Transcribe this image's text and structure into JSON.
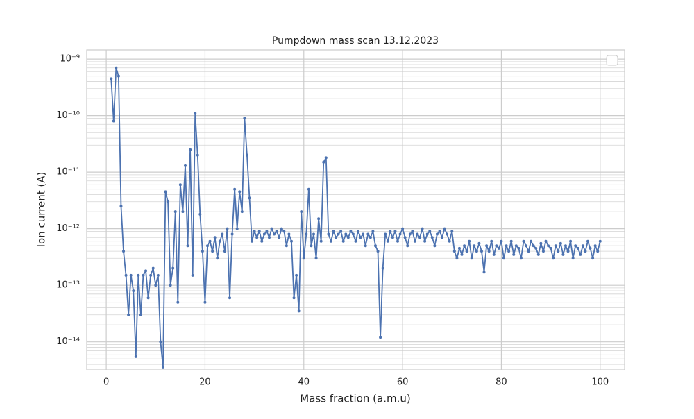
{
  "chart_data": {
    "type": "line",
    "title": "Pumpdown mass scan 13.12.2023",
    "xlabel": "Mass fraction (a.m.u)",
    "ylabel": "Ion current (A)",
    "yscale": "log",
    "grid": true,
    "minor_grid": true,
    "legend": "upper right",
    "markers": true,
    "xlim": [
      -3.95,
      104.95
    ],
    "xticks": [
      0,
      20,
      40,
      60,
      80,
      100
    ],
    "ylim": [
      3.2e-15,
      1.45e-09
    ],
    "yticks": [
      {
        "value": 1e-14,
        "label": "10⁻¹⁴"
      },
      {
        "value": 1e-13,
        "label": "10⁻¹³"
      },
      {
        "value": 1e-12,
        "label": "10⁻¹²"
      },
      {
        "value": 1e-11,
        "label": "10⁻¹¹"
      },
      {
        "value": 1e-10,
        "label": "10⁻¹⁰"
      },
      {
        "value": 1e-09,
        "label": "10⁻⁹"
      }
    ],
    "x": [
      1,
      1.5,
      2,
      2.5,
      3,
      3.5,
      4,
      4.5,
      5,
      5.5,
      6,
      6.5,
      7,
      7.5,
      8,
      8.5,
      9,
      9.5,
      10,
      10.5,
      11,
      11.5,
      12,
      12.5,
      13,
      13.5,
      14,
      14.5,
      15,
      15.5,
      16,
      16.5,
      17,
      17.5,
      18,
      18.5,
      19,
      19.5,
      20,
      20.5,
      21,
      21.5,
      22,
      22.5,
      23,
      23.5,
      24,
      24.5,
      25,
      25.5,
      26,
      26.5,
      27,
      27.5,
      28,
      28.5,
      29,
      29.5,
      30,
      30.5,
      31,
      31.5,
      32,
      32.5,
      33,
      33.5,
      34,
      34.5,
      35,
      35.5,
      36,
      36.5,
      37,
      37.5,
      38,
      38.5,
      39,
      39.5,
      40,
      40.5,
      41,
      41.5,
      42,
      42.5,
      43,
      43.5,
      44,
      44.5,
      45,
      45.5,
      46,
      46.5,
      47,
      47.5,
      48,
      48.5,
      49,
      49.5,
      50,
      50.5,
      51,
      51.5,
      52,
      52.5,
      53,
      53.5,
      54,
      54.5,
      55,
      55.5,
      56,
      56.5,
      57,
      57.5,
      58,
      58.5,
      59,
      59.5,
      60,
      60.5,
      61,
      61.5,
      62,
      62.5,
      63,
      63.5,
      64,
      64.5,
      65,
      65.5,
      66,
      66.5,
      67,
      67.5,
      68,
      68.5,
      69,
      69.5,
      70,
      70.5,
      71,
      71.5,
      72,
      72.5,
      73,
      73.5,
      74,
      74.5,
      75,
      75.5,
      76,
      76.5,
      77,
      77.5,
      78,
      78.5,
      79,
      79.5,
      80,
      80.5,
      81,
      81.5,
      82,
      82.5,
      83,
      83.5,
      84,
      84.5,
      85,
      85.5,
      86,
      86.5,
      87,
      87.5,
      88,
      88.5,
      89,
      89.5,
      90,
      90.5,
      91,
      91.5,
      92,
      92.5,
      93,
      93.5,
      94,
      94.5,
      95,
      95.5,
      96,
      96.5,
      97,
      97.5,
      98,
      98.5,
      99,
      99.5,
      100
    ],
    "series": [
      {
        "color": "#4c72b0",
        "values": [
          4.5e-10,
          8e-11,
          7e-10,
          5e-10,
          2.5e-12,
          4e-13,
          1.5e-13,
          3e-14,
          1.5e-13,
          8e-14,
          5.5e-15,
          1.5e-13,
          3e-14,
          1.5e-13,
          1.8e-13,
          6e-14,
          1.5e-13,
          2e-13,
          1e-13,
          1.5e-13,
          1e-14,
          3.5e-15,
          4.5e-12,
          3e-12,
          1e-13,
          2e-13,
          2e-12,
          5e-14,
          6e-12,
          2e-12,
          1.3e-11,
          5e-13,
          2.5e-11,
          1.5e-13,
          1.1e-10,
          2e-11,
          1.8e-12,
          4e-13,
          5e-14,
          5e-13,
          6e-13,
          4e-13,
          7e-13,
          3e-13,
          6e-13,
          8e-13,
          4e-13,
          1e-12,
          6e-14,
          8e-13,
          5e-12,
          1e-12,
          4.5e-12,
          2e-12,
          9e-11,
          2e-11,
          3.5e-12,
          6e-13,
          9e-13,
          7e-13,
          9e-13,
          6e-13,
          8e-13,
          9e-13,
          7e-13,
          1e-12,
          8e-13,
          9e-13,
          7e-13,
          1e-12,
          9e-13,
          5e-13,
          8e-13,
          6e-13,
          6e-14,
          1.5e-13,
          3.5e-14,
          2e-12,
          3e-13,
          8e-13,
          5e-12,
          5e-13,
          8e-13,
          3e-13,
          1.5e-12,
          6e-13,
          1.5e-11,
          1.8e-11,
          8e-13,
          6e-13,
          9e-13,
          7e-13,
          8e-13,
          9e-13,
          6e-13,
          8e-13,
          7e-13,
          9e-13,
          8e-13,
          6e-13,
          9e-13,
          7e-13,
          8e-13,
          5e-13,
          8e-13,
          7e-13,
          9e-13,
          5e-13,
          4e-13,
          1.2e-14,
          2e-13,
          8e-13,
          6e-13,
          9e-13,
          7e-13,
          9e-13,
          6e-13,
          8e-13,
          1e-12,
          7e-13,
          5e-13,
          8e-13,
          9e-13,
          6e-13,
          8e-13,
          7e-13,
          1e-12,
          6e-13,
          8e-13,
          9e-13,
          7e-13,
          5e-13,
          8e-13,
          9e-13,
          7e-13,
          1e-12,
          8e-13,
          6e-13,
          9e-13,
          4e-13,
          3e-13,
          4.5e-13,
          3.5e-13,
          5e-13,
          4e-13,
          6e-13,
          3e-13,
          5e-13,
          4e-13,
          5.5e-13,
          4e-13,
          1.7e-13,
          5e-13,
          4e-13,
          6e-13,
          3.5e-13,
          5e-13,
          4.5e-13,
          6e-13,
          3e-13,
          5e-13,
          4e-13,
          6e-13,
          3.5e-13,
          5e-13,
          4.5e-13,
          3e-13,
          6e-13,
          5e-13,
          4e-13,
          6e-13,
          5e-13,
          4.5e-13,
          3.5e-13,
          5.5e-13,
          4e-13,
          6e-13,
          5e-13,
          4.5e-13,
          3e-13,
          5e-13,
          4e-13,
          5.5e-13,
          3.5e-13,
          5e-13,
          4e-13,
          6e-13,
          3e-13,
          5e-13,
          4.5e-13,
          3.5e-13,
          5e-13,
          4e-13,
          6e-13,
          4.5e-13,
          3e-13,
          5e-13,
          4e-13,
          6e-13
        ]
      }
    ]
  }
}
